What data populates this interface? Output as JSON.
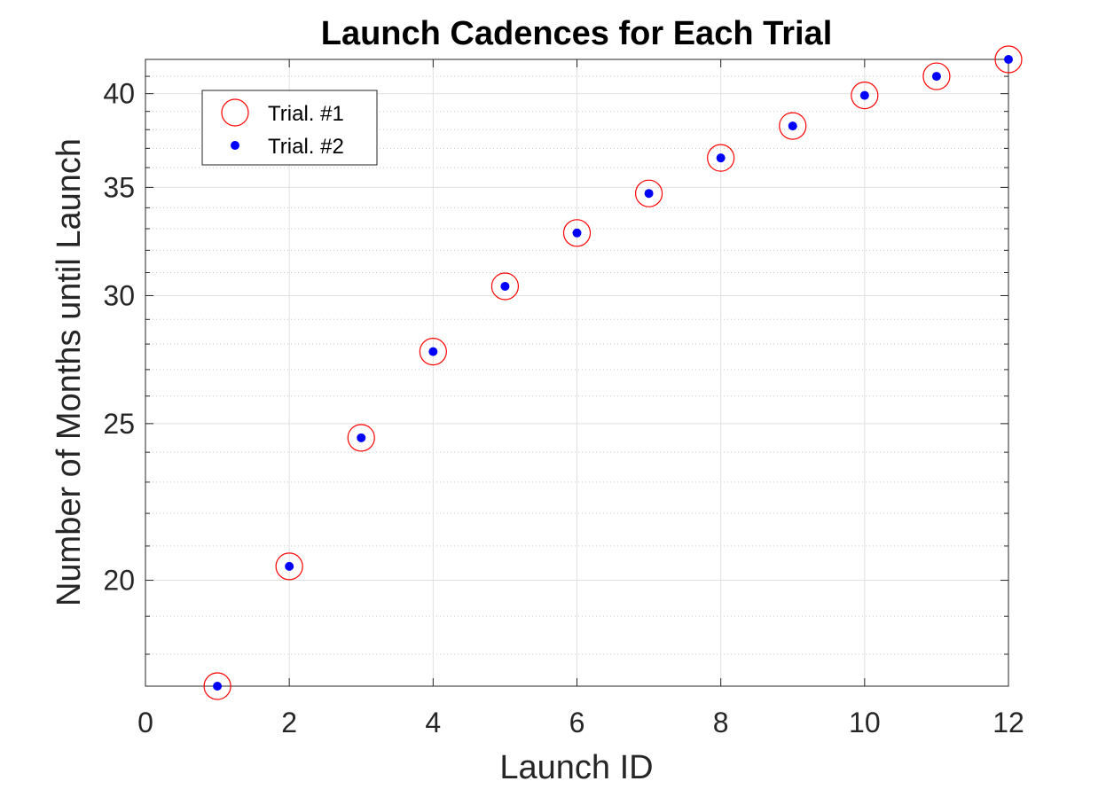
{
  "chart_data": {
    "type": "scatter",
    "title": "Launch Cadences for Each Trial",
    "xlabel": "Launch ID",
    "ylabel": "Number of Months until Launch",
    "xlim": [
      0,
      12
    ],
    "ylim": [
      17.2,
      42.0
    ],
    "yscale": "log",
    "x_ticks": [
      0,
      2,
      4,
      6,
      8,
      10,
      12
    ],
    "y_ticks": [
      20,
      25,
      30,
      35,
      40
    ],
    "grid": true,
    "minor_grid": true,
    "legend_position": "top-left",
    "x": [
      1,
      2,
      3,
      4,
      5,
      6,
      7,
      8,
      9,
      10,
      11,
      12
    ],
    "series": [
      {
        "name": "Trial. #1",
        "marker": "open-circle",
        "color": "#ff0000",
        "values": [
          17.2,
          20.4,
          24.5,
          27.7,
          30.4,
          32.8,
          34.7,
          36.5,
          38.2,
          39.9,
          41.0,
          42.0
        ]
      },
      {
        "name": "Trial. #2",
        "marker": "filled-dot",
        "color": "#0000ff",
        "values": [
          17.2,
          20.4,
          24.5,
          27.7,
          30.4,
          32.8,
          34.7,
          36.5,
          38.2,
          39.9,
          41.0,
          42.0
        ]
      }
    ]
  }
}
